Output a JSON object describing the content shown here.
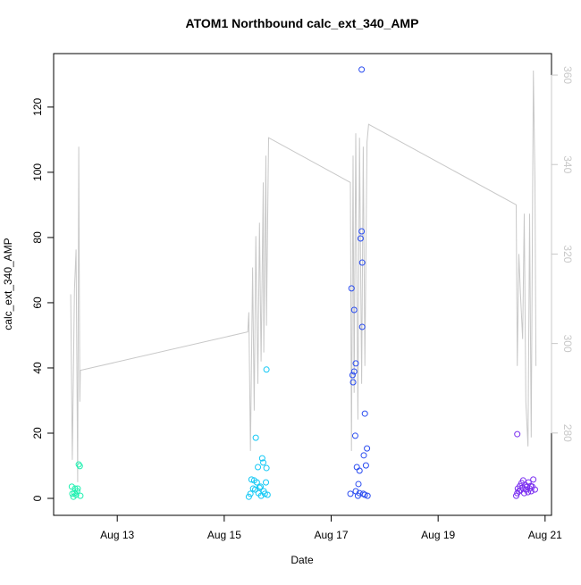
{
  "chart_data": {
    "type": "scatter",
    "title": "ATOM1 Northbound calc_ext_340_AMP",
    "x_label": "Date",
    "y_label": "calc_ext_340_AMP",
    "xlim": [
      11.81,
      21.12
    ],
    "xticks": [
      {
        "value": 13,
        "label": "Aug 13"
      },
      {
        "value": 15,
        "label": "Aug 15"
      },
      {
        "value": 17,
        "label": "Aug 17"
      },
      {
        "value": 19,
        "label": "Aug 19"
      },
      {
        "value": 21,
        "label": "Aug 21"
      }
    ],
    "ylim": [
      -5.2,
      136.4
    ],
    "yticks": [
      0,
      20,
      40,
      60,
      80,
      100,
      120
    ],
    "y2lim": [
      261.6,
      364.8
    ],
    "y2ticks": [
      280,
      300,
      320,
      340,
      360
    ],
    "y2_color": "#c8c8c8",
    "series": [
      {
        "type": "scatter",
        "color": "#1ff0b0",
        "x": [
          12.15,
          12.16,
          12.18,
          12.2,
          12.21,
          12.23,
          12.25,
          12.26,
          12.28,
          12.3,
          12.31
        ],
        "values": [
          3.6,
          1.4,
          0.5,
          1.6,
          3.0,
          1.1,
          2.2,
          3.0,
          10.4,
          9.9,
          0.8
        ]
      },
      {
        "type": "scatter",
        "color": "#12c8f5",
        "x": [
          15.46,
          15.49,
          15.51,
          15.54,
          15.56,
          15.58,
          15.59,
          15.61,
          15.63,
          15.64,
          15.66,
          15.68,
          15.69,
          15.71,
          15.73,
          15.74,
          15.76,
          15.78,
          15.79,
          15.79,
          15.81
        ],
        "values": [
          0.5,
          1.4,
          5.8,
          3.0,
          5.5,
          2.7,
          18.6,
          4.9,
          9.6,
          1.6,
          3.3,
          3.6,
          0.8,
          12.3,
          11.0,
          2.2,
          1.4,
          4.9,
          9.3,
          39.5,
          1.1
        ]
      },
      {
        "type": "scatter",
        "color": "#2a4cf0",
        "x": [
          17.36,
          17.38,
          17.4,
          17.41,
          17.43,
          17.43,
          17.45,
          17.46,
          17.46,
          17.48,
          17.5,
          17.51,
          17.53,
          17.53,
          17.55,
          17.57,
          17.57,
          17.58,
          17.58,
          17.6,
          17.61,
          17.63,
          17.63,
          17.65,
          17.67,
          17.68
        ],
        "values": [
          1.4,
          64.4,
          37.8,
          35.6,
          57.8,
          38.9,
          19.2,
          41.4,
          2.2,
          9.6,
          0.8,
          4.4,
          8.5,
          1.6,
          79.7,
          81.9,
          131.5,
          72.3,
          52.6,
          1.4,
          13.2,
          26.0,
          1.1,
          10.1,
          15.3,
          0.8
        ]
      },
      {
        "type": "scatter",
        "color": "#7a2ef0",
        "x": [
          20.46,
          20.48,
          20.48,
          20.49,
          20.51,
          20.53,
          20.54,
          20.56,
          20.58,
          20.59,
          20.61,
          20.63,
          20.64,
          20.66,
          20.68,
          20.69,
          20.71,
          20.73,
          20.74,
          20.76,
          20.78,
          20.81
        ],
        "values": [
          0.8,
          19.7,
          1.6,
          3.0,
          2.2,
          3.8,
          2.5,
          4.7,
          3.3,
          5.5,
          1.6,
          4.1,
          2.7,
          3.6,
          1.9,
          4.9,
          3.0,
          3.8,
          2.2,
          3.6,
          5.8,
          2.7
        ]
      },
      {
        "type": "line",
        "axis": "y2",
        "color": "#c8c8c8",
        "x": [
          12.13,
          12.16,
          12.2,
          12.23,
          12.26,
          12.28,
          12.3,
          12.31,
          15.44,
          15.46,
          15.49,
          15.53,
          15.56,
          15.59,
          15.63,
          15.66,
          15.69,
          15.73,
          15.74,
          15.78,
          15.79,
          15.83,
          17.36,
          17.38,
          17.41,
          17.43,
          17.46,
          17.5,
          17.53,
          17.57,
          17.6,
          17.63,
          17.67,
          17.7,
          20.46,
          20.48,
          20.51,
          20.54,
          20.58,
          20.61,
          20.64,
          20.68,
          20.71,
          20.74,
          20.78,
          20.81,
          20.83
        ],
        "values": [
          311,
          274,
          312,
          321,
          269,
          344,
          287,
          294,
          302.6,
          307,
          276,
          317,
          285,
          324,
          291,
          327,
          296,
          336,
          298,
          342,
          304,
          346,
          336,
          276,
          342,
          289,
          347,
          283,
          346,
          291,
          344,
          295,
          345,
          349,
          331,
          295,
          320,
          311,
          301,
          329,
          287,
          277,
          329,
          279,
          361,
          336,
          295
        ]
      }
    ]
  }
}
